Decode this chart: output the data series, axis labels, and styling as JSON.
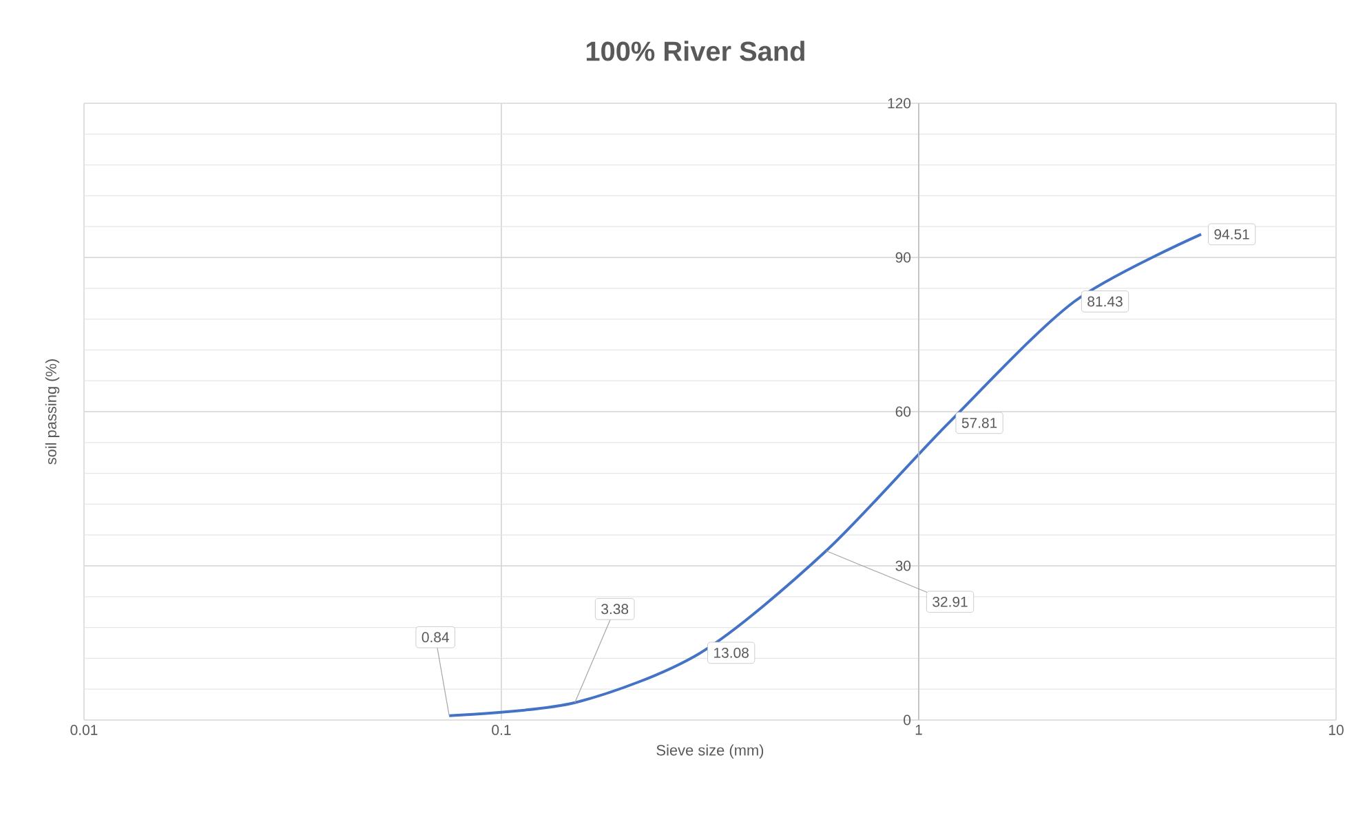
{
  "chart_data": {
    "type": "line",
    "title": "100% River Sand",
    "xlabel": "Sieve size (mm)",
    "ylabel": "soil passing (%)",
    "x": [
      0.075,
      0.15,
      0.3,
      0.6,
      1.18,
      2.36,
      4.75
    ],
    "series": [
      {
        "color": "#4472c4",
        "values": [
          0.84,
          3.38,
          13.08,
          32.91,
          57.81,
          81.43,
          94.51
        ]
      }
    ],
    "log": "x",
    "xlim": [
      0.01,
      10
    ],
    "xticks": [
      0.01,
      0.1,
      1,
      10
    ],
    "ylim": [
      0,
      120
    ],
    "yticks": [
      0,
      30,
      60,
      90,
      120
    ],
    "value_labels": [
      null,
      null,
      "13.08",
      null,
      "57.81",
      "81.43",
      "94.51"
    ],
    "annotations": [
      {
        "text": "0.84",
        "x": 0.075,
        "y": 0.84
      },
      {
        "text": "3.38",
        "x": 0.15,
        "y": 3.38
      },
      {
        "text": "32.91",
        "x": 0.6,
        "y": 32.91
      }
    ],
    "grid": true,
    "marker": "none",
    "line_style": "solid"
  }
}
